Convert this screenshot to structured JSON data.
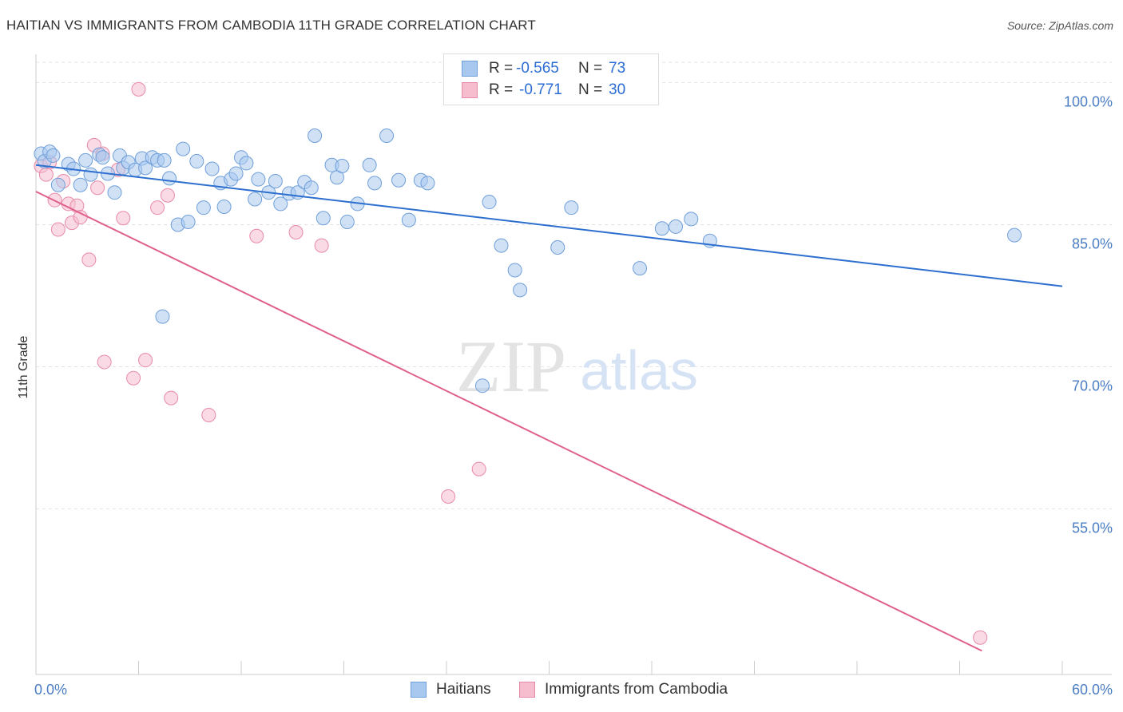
{
  "header": {
    "title": "HAITIAN VS IMMIGRANTS FROM CAMBODIA 11TH GRADE CORRELATION CHART",
    "source": "Source: ZipAtlas.com"
  },
  "watermark": {
    "zip": "ZIP",
    "atlas": "atlas"
  },
  "legend": {
    "rows": [
      {
        "r_label": "R =",
        "r_value": "-0.565",
        "n_label": "N =",
        "n_value": "73"
      },
      {
        "r_label": "R =",
        "r_value": "-0.771",
        "n_label": "N =",
        "n_value": "30"
      }
    ]
  },
  "bottom_legend": {
    "items": [
      {
        "label": "Haitians"
      },
      {
        "label": "Immigrants from Cambodia"
      }
    ]
  },
  "chart_data": {
    "type": "scatter",
    "title": "HAITIAN VS IMMIGRANTS FROM CAMBODIA 11TH GRADE CORRELATION CHART",
    "xlabel": "",
    "ylabel": "11th Grade",
    "xlim": [
      0,
      60
    ],
    "ylim": [
      37.5,
      103
    ],
    "x_tick_labels": [
      "0.0%",
      "60.0%"
    ],
    "y_ticks": [
      100,
      85,
      70,
      55
    ],
    "y_tick_labels": [
      "100.0%",
      "85.0%",
      "70.0%",
      "55.0%"
    ],
    "grid": true,
    "colors": {
      "haitians_fill": "#a9c8ef",
      "haitians_stroke": "#6f9fd9",
      "haitians_line": "#2c6fcf",
      "cambodia_fill": "#f6bdcf",
      "cambodia_stroke": "#e88aa8",
      "cambodia_line": "#e0608d",
      "tick_text": "#4a7dc4"
    },
    "series": [
      {
        "name": "Haitians",
        "r": -0.565,
        "n": 73,
        "trend": {
          "x": [
            0,
            60
          ],
          "y": [
            91.3,
            78.5
          ]
        },
        "points": [
          [
            0.3,
            92.5
          ],
          [
            0.5,
            91.7
          ],
          [
            0.8,
            92.7
          ],
          [
            1.0,
            92.3
          ],
          [
            1.3,
            89.2
          ],
          [
            1.9,
            91.4
          ],
          [
            2.2,
            90.9
          ],
          [
            2.6,
            89.2
          ],
          [
            2.9,
            91.8
          ],
          [
            3.2,
            90.3
          ],
          [
            3.7,
            92.4
          ],
          [
            3.9,
            92.1
          ],
          [
            4.2,
            90.4
          ],
          [
            4.6,
            88.4
          ],
          [
            4.9,
            92.3
          ],
          [
            5.1,
            91.0
          ],
          [
            5.4,
            91.6
          ],
          [
            5.8,
            90.8
          ],
          [
            6.2,
            92.0
          ],
          [
            6.4,
            91.0
          ],
          [
            6.8,
            92.1
          ],
          [
            7.1,
            91.8
          ],
          [
            7.5,
            91.8
          ],
          [
            7.8,
            89.9
          ],
          [
            8.3,
            85.0
          ],
          [
            8.6,
            93.0
          ],
          [
            8.9,
            85.3
          ],
          [
            9.4,
            91.7
          ],
          [
            9.8,
            86.8
          ],
          [
            10.3,
            90.9
          ],
          [
            10.8,
            89.4
          ],
          [
            11.0,
            86.9
          ],
          [
            11.4,
            89.8
          ],
          [
            11.7,
            90.4
          ],
          [
            12.0,
            92.1
          ],
          [
            12.3,
            91.5
          ],
          [
            12.8,
            87.7
          ],
          [
            13.0,
            89.8
          ],
          [
            13.6,
            88.4
          ],
          [
            14.0,
            89.6
          ],
          [
            14.3,
            87.2
          ],
          [
            14.8,
            88.3
          ],
          [
            15.3,
            88.4
          ],
          [
            15.7,
            89.5
          ],
          [
            16.1,
            88.9
          ],
          [
            16.3,
            94.4
          ],
          [
            16.8,
            85.7
          ],
          [
            17.3,
            91.3
          ],
          [
            17.6,
            90.0
          ],
          [
            17.9,
            91.2
          ],
          [
            18.2,
            85.3
          ],
          [
            18.8,
            87.2
          ],
          [
            19.5,
            91.3
          ],
          [
            19.8,
            89.4
          ],
          [
            20.5,
            94.4
          ],
          [
            21.2,
            89.7
          ],
          [
            21.8,
            85.5
          ],
          [
            22.5,
            89.7
          ],
          [
            22.9,
            89.4
          ],
          [
            26.5,
            87.4
          ],
          [
            27.2,
            82.8
          ],
          [
            28.0,
            80.2
          ],
          [
            28.3,
            78.1
          ],
          [
            30.5,
            82.6
          ],
          [
            31.3,
            86.8
          ],
          [
            35.3,
            80.4
          ],
          [
            36.6,
            84.6
          ],
          [
            37.4,
            84.8
          ],
          [
            38.3,
            85.6
          ],
          [
            39.4,
            83.3
          ],
          [
            57.2,
            83.9
          ],
          [
            7.4,
            75.3
          ],
          [
            26.1,
            68.0
          ]
        ]
      },
      {
        "name": "Immigrants from Cambodia",
        "r": -0.771,
        "n": 30,
        "trend": {
          "x": [
            0,
            55.3
          ],
          "y": [
            88.5,
            40.0
          ]
        },
        "points": [
          [
            0.3,
            91.2
          ],
          [
            0.6,
            90.3
          ],
          [
            0.8,
            91.6
          ],
          [
            1.1,
            87.6
          ],
          [
            1.3,
            84.5
          ],
          [
            1.6,
            89.6
          ],
          [
            1.9,
            87.2
          ],
          [
            2.1,
            85.2
          ],
          [
            2.4,
            87.0
          ],
          [
            2.6,
            85.8
          ],
          [
            3.1,
            81.3
          ],
          [
            3.4,
            93.4
          ],
          [
            3.6,
            88.9
          ],
          [
            3.9,
            92.5
          ],
          [
            4.0,
            70.5
          ],
          [
            4.8,
            90.8
          ],
          [
            5.1,
            85.7
          ],
          [
            5.7,
            68.8
          ],
          [
            6.0,
            99.3
          ],
          [
            6.4,
            70.7
          ],
          [
            7.1,
            86.8
          ],
          [
            7.7,
            88.1
          ],
          [
            7.9,
            66.7
          ],
          [
            10.1,
            64.9
          ],
          [
            12.9,
            83.8
          ],
          [
            15.2,
            84.2
          ],
          [
            16.7,
            82.8
          ],
          [
            24.1,
            56.3
          ],
          [
            25.9,
            59.2
          ],
          [
            55.2,
            41.4
          ]
        ]
      }
    ]
  }
}
